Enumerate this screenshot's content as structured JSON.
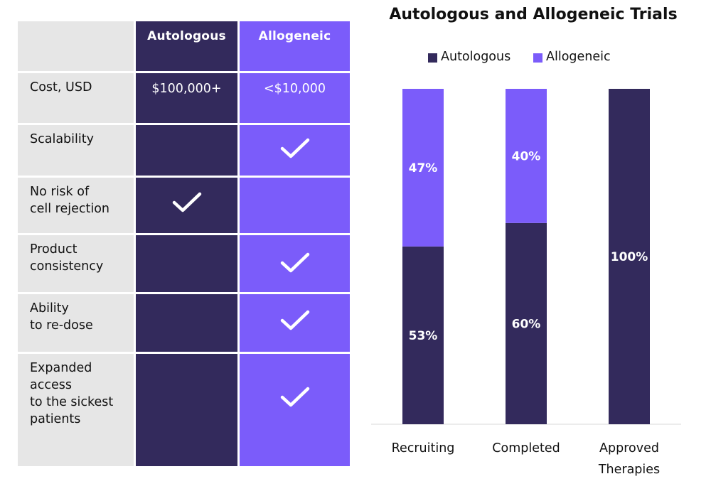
{
  "table": {
    "columns": [
      "Autologous",
      "Allogeneic"
    ],
    "rows": [
      {
        "label": "Cost, USD",
        "autologous": "$100,000+",
        "allogeneic": "<$10,000"
      },
      {
        "label": "Scalability",
        "autologous": "",
        "allogeneic": "check"
      },
      {
        "label": "No risk of\ncell rejection",
        "autologous": "check",
        "allogeneic": ""
      },
      {
        "label": "Product\nconsistency",
        "autologous": "",
        "allogeneic": "check"
      },
      {
        "label": "Ability\nto re-dose",
        "autologous": "",
        "allogeneic": "check"
      },
      {
        "label": "Expanded\naccess\nto the sickest\npatients",
        "autologous": "",
        "allogeneic": "check"
      }
    ],
    "colors": {
      "autologous": "#332a5c",
      "allogeneic": "#7b5cfa",
      "label_bg": "#e6e6e6"
    },
    "check_icon": "checkmark-icon"
  },
  "chart_data": {
    "type": "bar",
    "stacked": true,
    "title": "Autologous and Allogeneic Trials",
    "categories": [
      "Recruiting",
      "Completed",
      "Approved\nTherapies"
    ],
    "series": [
      {
        "name": "Autologous",
        "values": [
          53,
          60,
          100
        ],
        "labels": [
          "53%",
          "60%",
          "100%"
        ],
        "color": "#332a5c"
      },
      {
        "name": "Allogeneic",
        "values": [
          47,
          40,
          0
        ],
        "labels": [
          "47%",
          "40%",
          ""
        ],
        "color": "#7b5cfa"
      }
    ],
    "ylim": [
      0,
      100
    ],
    "unit": "%",
    "legend_position": "top",
    "grid": false
  }
}
